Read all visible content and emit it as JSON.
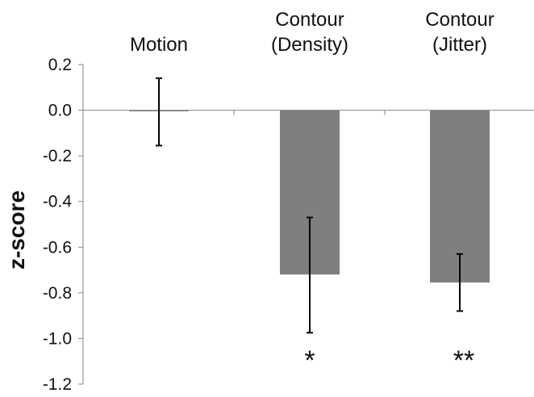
{
  "chart_data": {
    "type": "bar",
    "categories": [
      [
        "Motion"
      ],
      [
        "Contour",
        "(Density)"
      ],
      [
        "Contour",
        "(Jitter)"
      ]
    ],
    "values": [
      -0.005,
      -0.72,
      -0.755
    ],
    "error_low": [
      -0.155,
      -0.975,
      -0.88
    ],
    "error_high": [
      0.14,
      -0.47,
      -0.63
    ],
    "significance": [
      "",
      "*",
      "**"
    ],
    "ylabel": "z-score",
    "ylim": [
      -1.2,
      0.2
    ],
    "yticks": [
      "0.2",
      "0.0",
      "-0.2",
      "-0.4",
      "-0.6",
      "-0.8",
      "-1.0",
      "-1.2"
    ],
    "bar_color": "#7f7f7f",
    "grid": false
  }
}
